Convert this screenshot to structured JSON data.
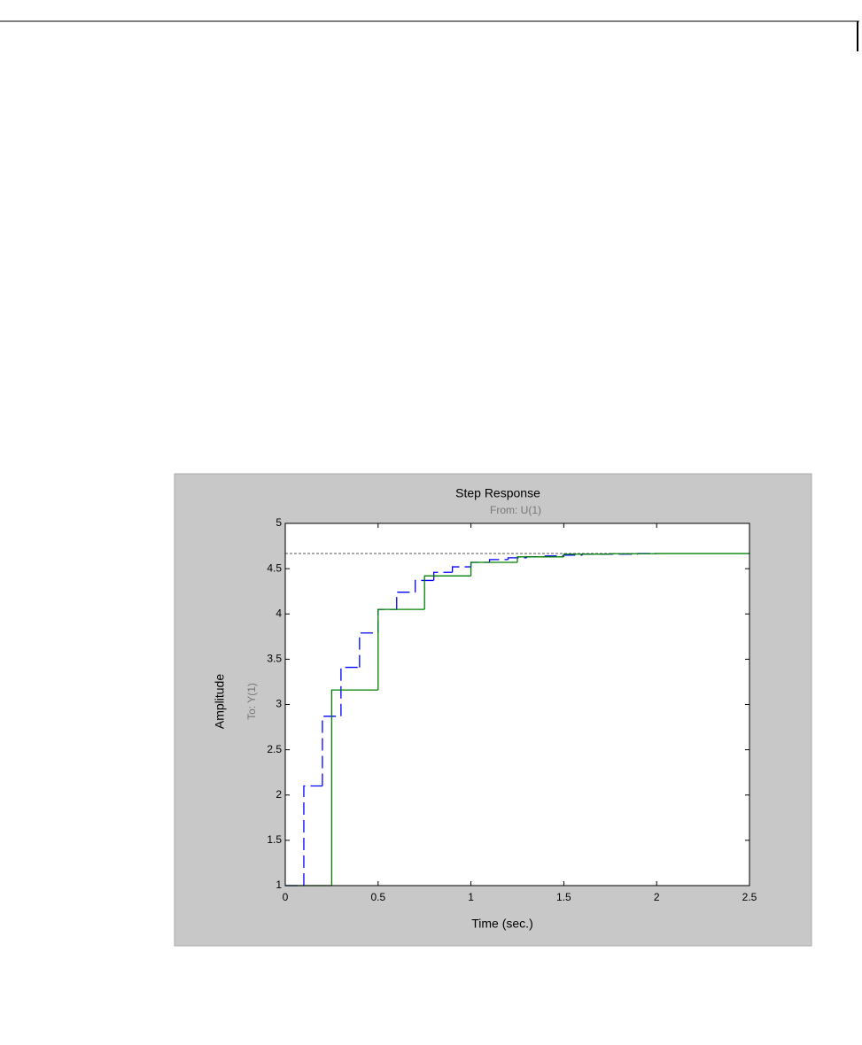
{
  "chart_data": {
    "type": "stairs",
    "title": "Step Response",
    "subtitle": "From: U(1)",
    "output_label": "To: Y(1)",
    "ylabel": "Amplitude",
    "xlabel": "Time (sec.)",
    "xlim": [
      0,
      2.5
    ],
    "ylim": [
      1,
      5
    ],
    "xticks": [
      0,
      0.5,
      1,
      1.5,
      2,
      2.5
    ],
    "yticks": [
      1,
      1.5,
      2,
      2.5,
      3,
      3.5,
      4,
      4.5,
      5
    ],
    "final_value": 4.667,
    "series": [
      {
        "color": "#0000ff",
        "dashed": true,
        "x": [
          0,
          0.1,
          0.2,
          0.3,
          0.4,
          0.5,
          0.6,
          0.7,
          0.8,
          0.9,
          1,
          1.1,
          1.2,
          1.3,
          1.4,
          1.5,
          1.6,
          1.7,
          1.8,
          1.9,
          2
        ],
        "values": [
          1,
          2.1,
          2.87,
          3.41,
          3.79,
          4.05,
          4.24,
          4.37,
          4.46,
          4.52,
          4.57,
          4.6,
          4.62,
          4.63,
          4.64,
          4.65,
          4.66,
          4.66,
          4.66,
          4.667,
          4.667
        ]
      },
      {
        "color": "#008000",
        "dashed": false,
        "x": [
          0,
          0.25,
          0.5,
          0.75,
          1,
          1.25,
          1.5,
          1.75,
          2,
          2.5
        ],
        "values": [
          1,
          3.16,
          4.05,
          4.42,
          4.57,
          4.63,
          4.66,
          4.665,
          4.667,
          4.667
        ]
      }
    ]
  }
}
